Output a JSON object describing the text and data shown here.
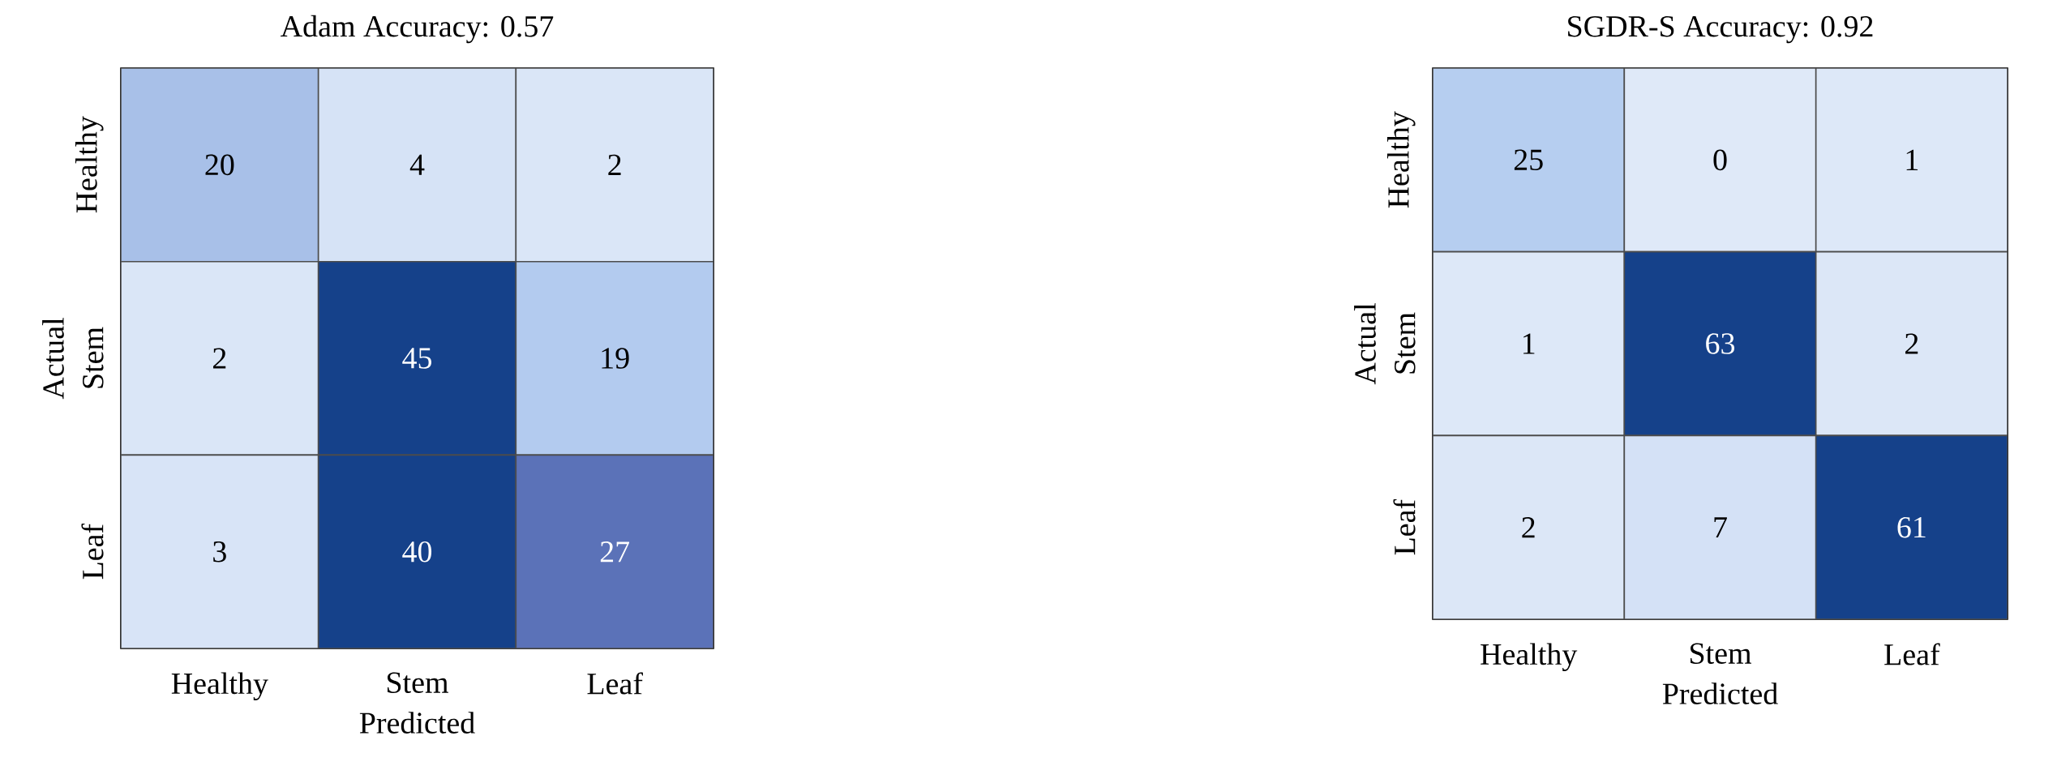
{
  "chart_data": [
    {
      "type": "heatmap",
      "title": "Adam Accuracy: 0.57",
      "xlabel": "Predicted",
      "ylabel": "Actual",
      "categories": [
        "Healthy",
        "Stem",
        "Leaf"
      ],
      "y_categories": [
        "Healthy",
        "Stem",
        "Leaf"
      ],
      "cells": [
        [
          20,
          4,
          2
        ],
        [
          2,
          45,
          19
        ],
        [
          3,
          40,
          27
        ]
      ],
      "data_labels": true
    },
    {
      "type": "heatmap",
      "title": "SGDR-S Accuracy: 0.92",
      "xlabel": "Predicted",
      "ylabel": "Actual",
      "categories": [
        "Healthy",
        "Stem",
        "Leaf"
      ],
      "y_categories": [
        "Healthy",
        "Stem",
        "Leaf"
      ],
      "cells": [
        [
          25,
          0,
          1
        ],
        [
          1,
          63,
          2
        ],
        [
          2,
          7,
          61
        ]
      ],
      "data_labels": true
    }
  ]
}
